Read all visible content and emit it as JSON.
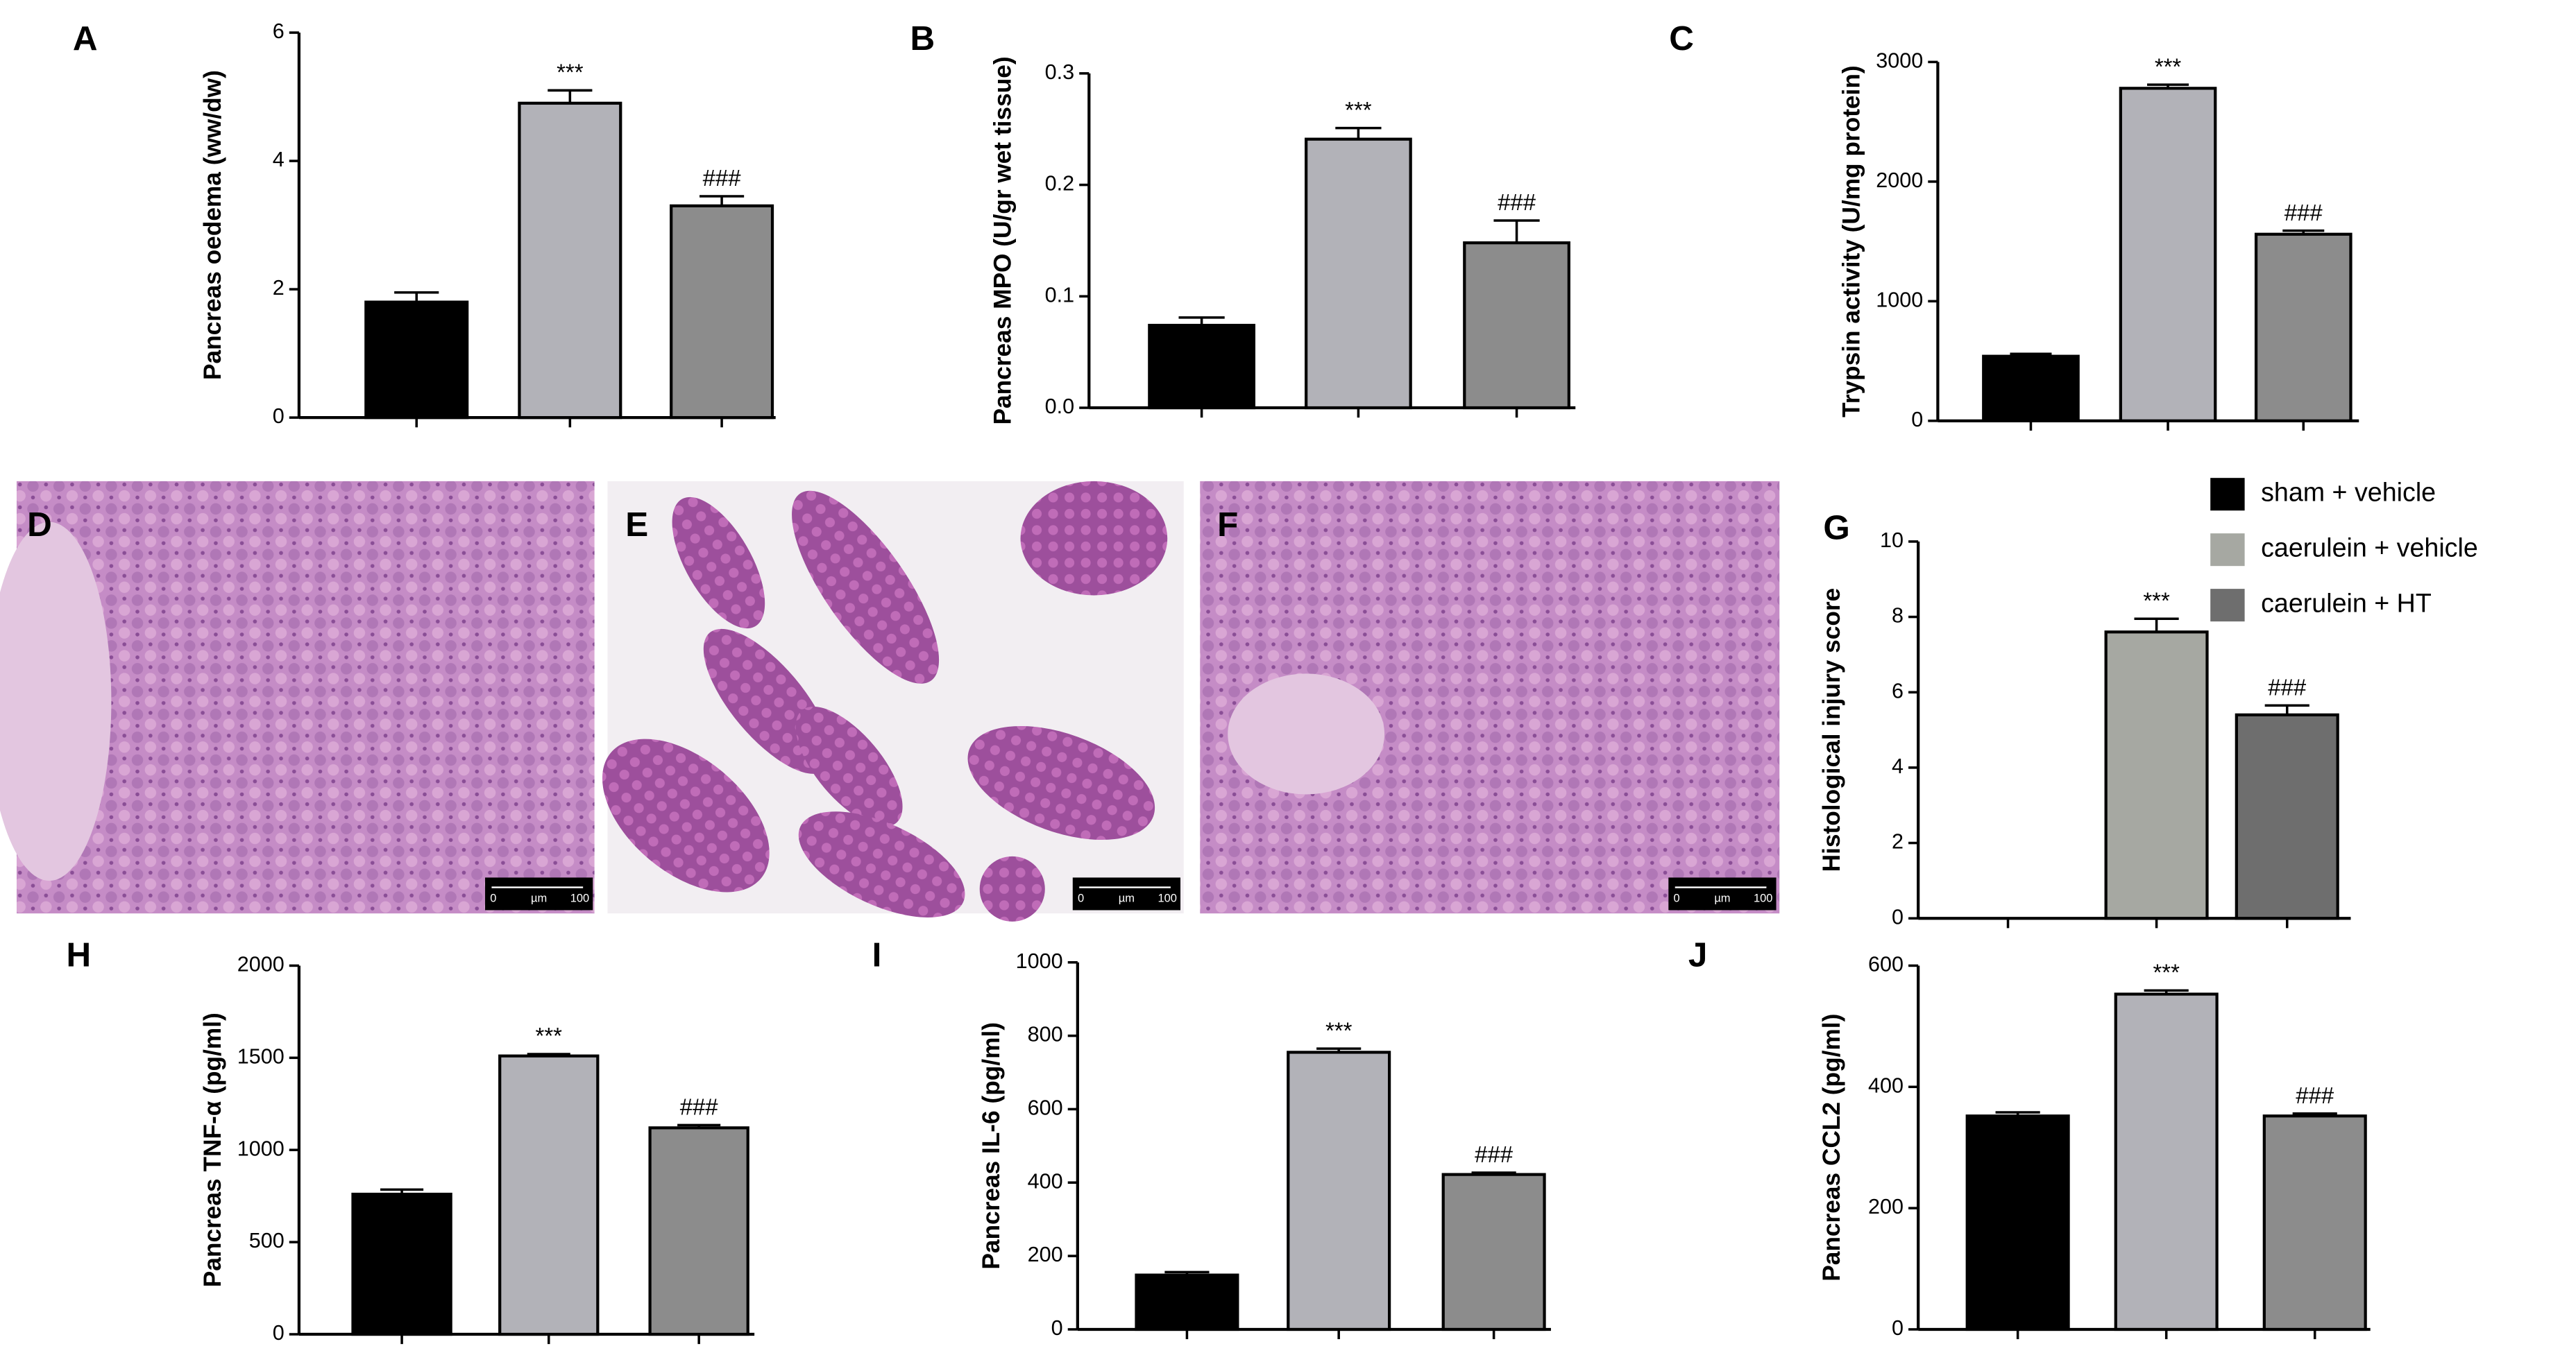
{
  "chart_data": [
    {
      "type": "bar",
      "panel": "A",
      "ylabel": "Pancreas oedema (ww/dw)",
      "categories": [
        null,
        null,
        null
      ],
      "values": [
        1.8,
        4.9,
        3.3
      ],
      "errors": [
        0.15,
        0.2,
        0.15
      ],
      "significance": [
        null,
        "***",
        "###"
      ],
      "colors": [
        "#000000",
        "#b2b2b8",
        "#8c8c8c"
      ],
      "ylim": [
        0,
        6
      ],
      "yticks": [
        0,
        2,
        4,
        6
      ]
    },
    {
      "type": "bar",
      "panel": "B",
      "ylabel": "Pancreas MPO (U/gr wet tissue)",
      "categories": [
        null,
        null,
        null
      ],
      "values": [
        0.074,
        0.241,
        0.148
      ],
      "errors": [
        0.007,
        0.01,
        0.02
      ],
      "significance": [
        null,
        "***",
        "###"
      ],
      "colors": [
        "#000000",
        "#b2b2b8",
        "#8c8c8c"
      ],
      "ylim": [
        0,
        0.3
      ],
      "yticks": [
        {
          "value": 0,
          "label": "0.0"
        },
        0.1,
        0.2,
        0.3
      ]
    },
    {
      "type": "bar",
      "panel": "C",
      "ylabel": "Trypsin activity (U/mg protein)",
      "categories": [
        null,
        null,
        null
      ],
      "values": [
        540,
        2780,
        1560
      ],
      "errors": [
        20,
        30,
        30
      ],
      "significance": [
        null,
        "***",
        "###"
      ],
      "colors": [
        "#000000",
        "#b2b2b8",
        "#8c8c8c"
      ],
      "ylim": [
        0,
        3000
      ],
      "yticks": [
        0,
        1000,
        2000,
        3000
      ]
    },
    {
      "type": "bar",
      "panel": "G",
      "ylabel": "Histological injury score",
      "categories": [
        null,
        null,
        null
      ],
      "values": [
        0,
        7.6,
        5.4
      ],
      "errors": [
        0,
        0.35,
        0.25
      ],
      "significance": [
        null,
        "***",
        "###"
      ],
      "colors": [
        "#000000",
        "#a6a8a2",
        "#6e6e6e"
      ],
      "ylim": [
        0,
        10
      ],
      "yticks": [
        0,
        2,
        4,
        6,
        8,
        10
      ],
      "legend_labels": [
        "sham + vehicle",
        "caerulein + vehicle",
        "caerulein + HT"
      ]
    },
    {
      "type": "bar",
      "panel": "H",
      "ylabel": "Pancreas TNF-α (pg/ml)",
      "categories": [
        null,
        null,
        null
      ],
      "values": [
        760,
        1510,
        1120
      ],
      "errors": [
        25,
        10,
        15
      ],
      "significance": [
        null,
        "***",
        "###"
      ],
      "colors": [
        "#000000",
        "#b2b2b8",
        "#8c8c8c"
      ],
      "ylim": [
        0,
        2000
      ],
      "yticks": [
        0,
        500,
        1000,
        1500,
        2000
      ]
    },
    {
      "type": "bar",
      "panel": "I",
      "ylabel": "Pancreas IL-6 (pg/ml)",
      "categories": [
        null,
        null,
        null
      ],
      "values": [
        148,
        755,
        422
      ],
      "errors": [
        8,
        10,
        5
      ],
      "significance": [
        null,
        "***",
        "###"
      ],
      "colors": [
        "#000000",
        "#b2b2b8",
        "#8c8c8c"
      ],
      "ylim": [
        0,
        1000
      ],
      "yticks": [
        0,
        200,
        400,
        600,
        800,
        1000
      ]
    },
    {
      "type": "bar",
      "panel": "J",
      "ylabel": "Pancreas CCL2 (pg/ml)",
      "categories": [
        null,
        null,
        null
      ],
      "values": [
        352,
        553,
        352
      ],
      "errors": [
        6,
        6,
        4
      ],
      "significance": [
        null,
        "***",
        "###"
      ],
      "colors": [
        "#000000",
        "#b2b2b8",
        "#8c8c8c"
      ],
      "ylim": [
        0,
        600
      ],
      "yticks": [
        0,
        200,
        400,
        600
      ]
    }
  ],
  "micrographs": [
    {
      "panel": "D",
      "scale_labels": [
        "0",
        "µm",
        "100"
      ]
    },
    {
      "panel": "E",
      "scale_labels": [
        "0",
        "µm",
        "100"
      ]
    },
    {
      "panel": "F",
      "scale_labels": [
        "0",
        "µm",
        "100"
      ]
    }
  ]
}
